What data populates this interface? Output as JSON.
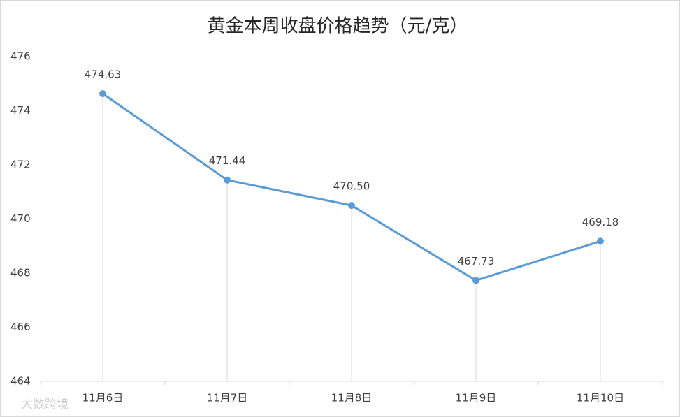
{
  "chart_data": {
    "type": "line",
    "title": "黄金本周收盘价格趋势（元/克）",
    "categories": [
      "11月6日",
      "11月7日",
      "11月8日",
      "11月9日",
      "11月10日"
    ],
    "values": [
      474.63,
      471.44,
      470.5,
      467.73,
      469.18
    ],
    "value_labels": [
      "474.63",
      "471.44",
      "470.50",
      "467.73",
      "469.18"
    ],
    "color": "#5b9bd5",
    "drop_lines": true,
    "ylim": [
      464,
      476
    ],
    "yticks": [
      464,
      466,
      468,
      470,
      472,
      474,
      476
    ]
  },
  "watermark": "大数跨境"
}
